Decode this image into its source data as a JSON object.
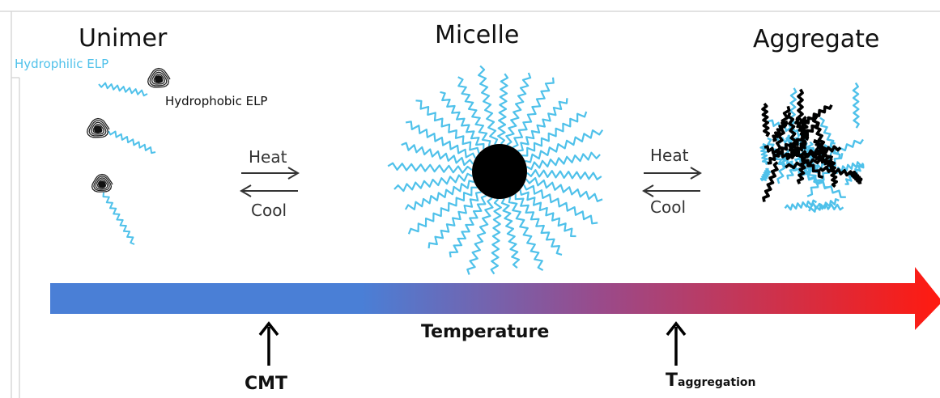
{
  "titles": {
    "unimer": "Unimer",
    "micelle": "Micelle",
    "aggregate": "Aggregate"
  },
  "labels": {
    "hydrophilic": "Hydrophilic ELP",
    "hydrophobic": "Hydrophobic ELP"
  },
  "arrows": {
    "heat": "Heat",
    "cool": "Cool"
  },
  "axis": {
    "label": "Temperature",
    "gradient_start": "#4a7fd6",
    "gradient_end": "#ff1a10"
  },
  "markers": {
    "cmt": "CMT",
    "t_main": "T",
    "t_sub": "aggregation"
  },
  "colors": {
    "hydrophilic": "#4fc1ea",
    "hydrophobic": "#000000"
  }
}
